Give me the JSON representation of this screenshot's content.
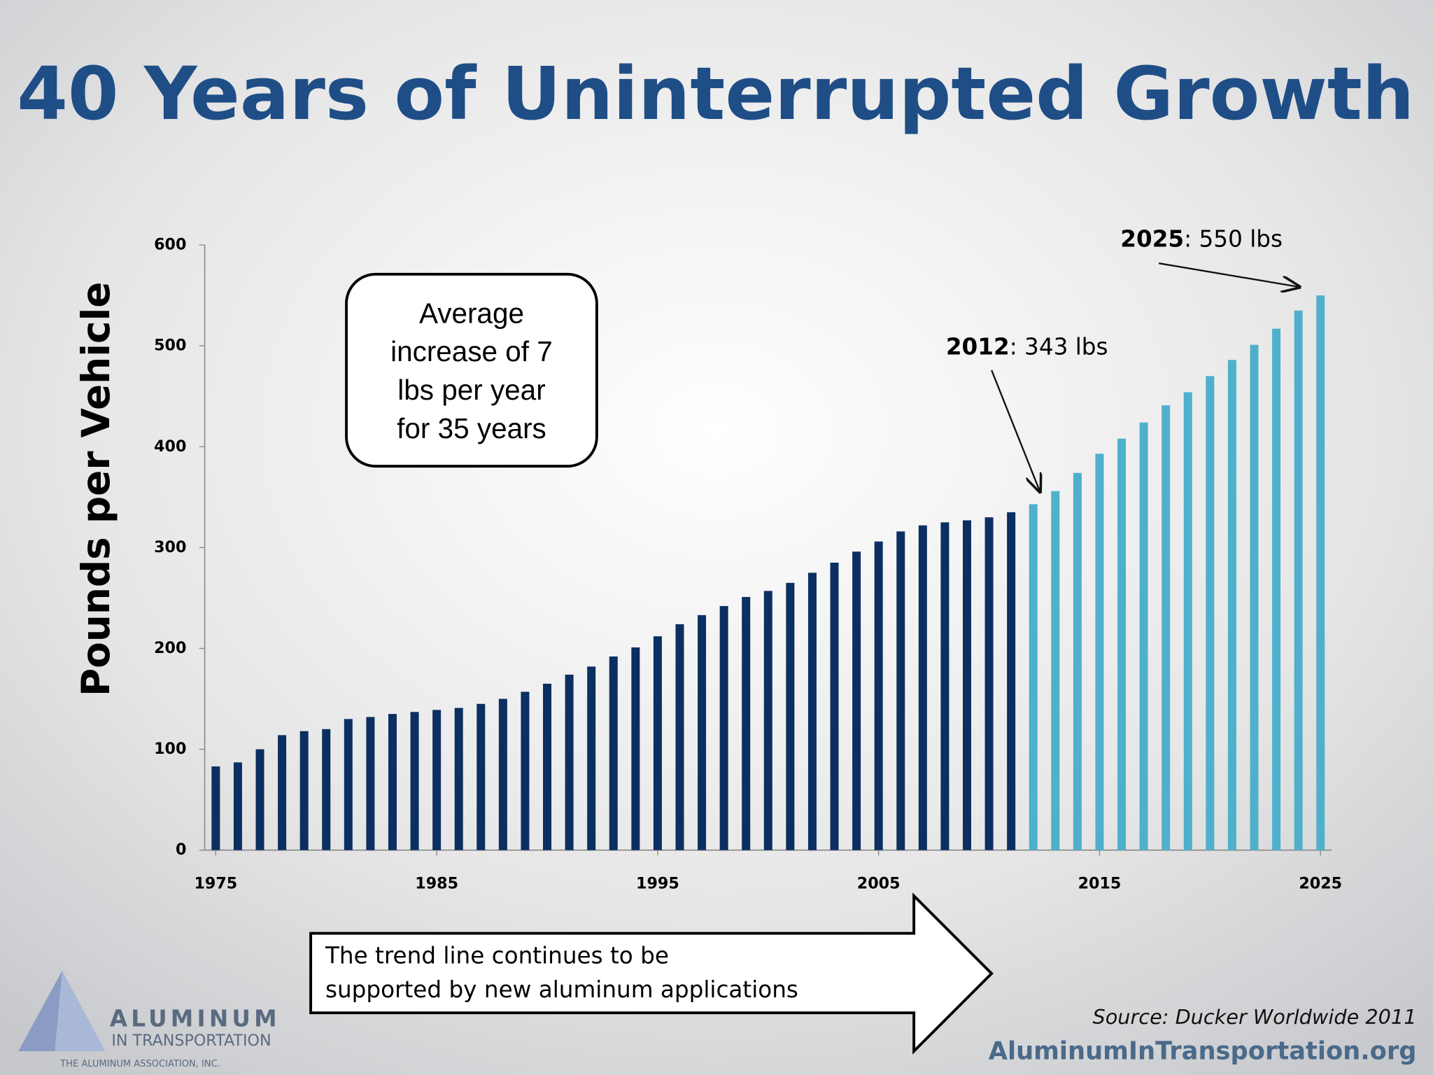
{
  "chart_data": {
    "type": "bar",
    "title": "40 Years of Uninterrupted Growth",
    "y_label": "Pounds per Vehicle",
    "xlim": [
      1974.5,
      2025.5
    ],
    "xticks": [
      1975,
      1985,
      1995,
      2005,
      2015,
      2025
    ],
    "ylim": [
      0,
      600
    ],
    "yticks": [
      0,
      100,
      200,
      300,
      400,
      500,
      600
    ],
    "series": [
      {
        "color": "#0b2f61",
        "x": [
          1975,
          1976,
          1977,
          1978,
          1979,
          1980,
          1981,
          1982,
          1983,
          1984,
          1985,
          1986,
          1987,
          1988,
          1989,
          1990,
          1991,
          1992,
          1993,
          1994,
          1995,
          1996,
          1997,
          1998,
          1999,
          2000,
          2001,
          2002,
          2003,
          2004,
          2005,
          2006,
          2007,
          2008,
          2009,
          2010,
          2011
        ],
        "values": [
          83,
          87,
          100,
          114,
          118,
          120,
          130,
          132,
          135,
          137,
          139,
          141,
          145,
          150,
          157,
          165,
          174,
          182,
          192,
          201,
          212,
          224,
          233,
          242,
          251,
          257,
          265,
          275,
          285,
          296,
          306,
          316,
          322,
          325,
          327,
          330,
          335
        ]
      },
      {
        "color": "#4fb0cc",
        "x": [
          2012,
          2013,
          2014,
          2015,
          2016,
          2017,
          2018,
          2019,
          2020,
          2021,
          2022,
          2023,
          2024,
          2025
        ],
        "values": [
          343,
          356,
          374,
          393,
          408,
          424,
          441,
          454,
          470,
          486,
          501,
          517,
          535,
          550
        ]
      }
    ],
    "annotations": [
      {
        "year": "2012",
        "text": ": 343 lbs"
      },
      {
        "year": "2025",
        "text": ": 550 lbs"
      }
    ],
    "note_box": [
      "Average",
      "increase of 7",
      "lbs per year",
      "for 35 years"
    ],
    "trend_note": [
      "The trend line continues to be",
      "supported by new aluminum applications"
    ],
    "source": "Source:  Ducker Worldwide 2011",
    "website": "AluminumInTransportation.org",
    "logo": {
      "name": "ALUMINUM",
      "sub": "IN TRANSPORTATION",
      "org": "THE ALUMINUM ASSOCIATION, INC."
    }
  }
}
